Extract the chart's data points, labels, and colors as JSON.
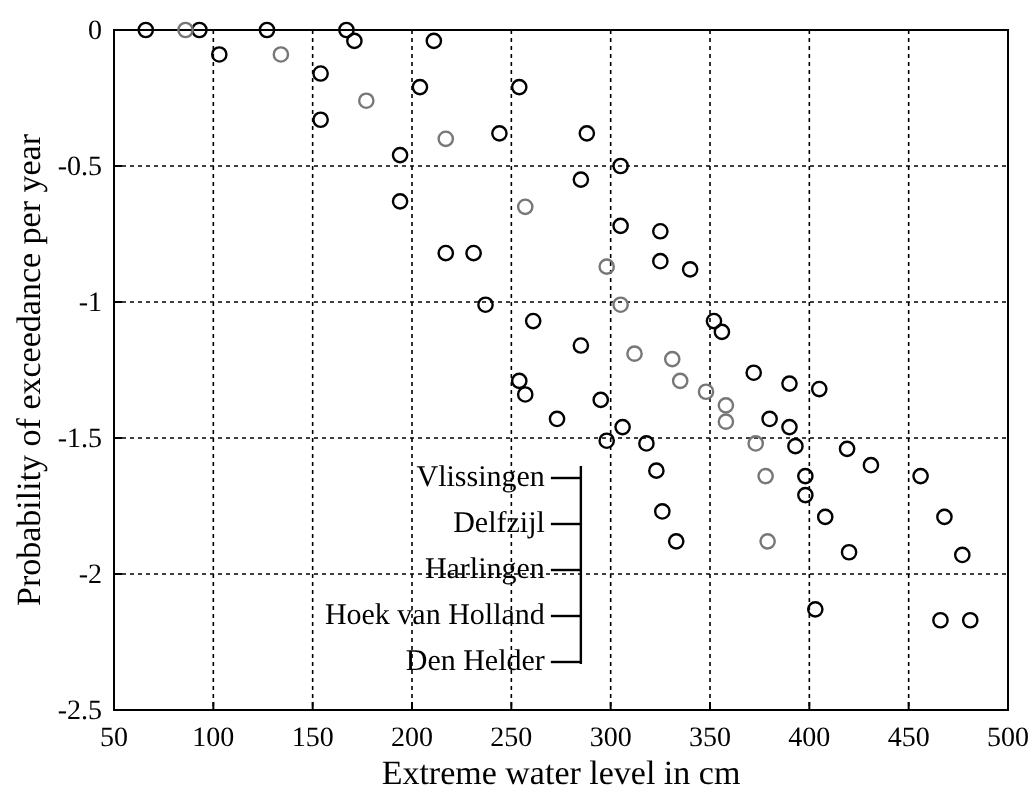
{
  "chart_data": {
    "type": "scatter",
    "xlabel": "Extreme water level in cm",
    "ylabel": "Probability of exceedance per year",
    "xlim": [
      50,
      500
    ],
    "xticks": [
      50,
      100,
      150,
      200,
      250,
      300,
      350,
      400,
      450,
      500
    ],
    "ylim": [
      -2.5,
      0
    ],
    "yticks": [
      -2.5,
      -2,
      -1.5,
      -1,
      -0.5,
      0
    ],
    "grid": true,
    "marker": "circle",
    "series": [
      {
        "color": "#000000",
        "x": [
          66,
          103,
          154,
          194,
          217,
          237,
          254,
          257,
          273
        ],
        "values": [
          0,
          -0.09,
          -0.33,
          -0.63,
          -0.82,
          -1.01,
          -1.29,
          -1.34,
          -1.43
        ]
      },
      {
        "color": "#000000",
        "x": [
          93,
          154,
          194,
          231,
          261,
          285,
          295,
          298,
          306,
          318,
          323,
          326,
          333
        ],
        "values": [
          0,
          -0.16,
          -0.46,
          -0.82,
          -1.07,
          -1.16,
          -1.36,
          -1.51,
          -1.46,
          -1.52,
          -1.62,
          -1.77,
          -1.88
        ]
      },
      {
        "color": "#777777",
        "x": [
          86,
          134,
          177,
          217,
          257,
          298,
          305,
          312,
          331,
          335,
          348,
          358,
          358,
          373,
          378,
          379
        ],
        "values": [
          0,
          -0.09,
          -0.26,
          -0.4,
          -0.65,
          -0.87,
          -1.01,
          -1.19,
          -1.21,
          -1.29,
          -1.33,
          -1.38,
          -1.44,
          -1.52,
          -1.64,
          -1.88
        ]
      },
      {
        "color": "#000000",
        "x": [
          127,
          171,
          204,
          244,
          285,
          305,
          325,
          352,
          390,
          405,
          419,
          431,
          456,
          468,
          477,
          466,
          481
        ],
        "values": [
          0,
          -0.04,
          -0.21,
          -0.38,
          -0.55,
          -0.72,
          -0.85,
          -1.07,
          -1.3,
          -1.32,
          -1.54,
          -1.6,
          -1.64,
          -1.79,
          -1.93,
          -2.17,
          -2.17
        ]
      },
      {
        "color": "#000000",
        "x": [
          167,
          211,
          254,
          288,
          305,
          325,
          340,
          356,
          372,
          380,
          390,
          393,
          398,
          398,
          408,
          420,
          403
        ],
        "values": [
          0,
          -0.04,
          -0.21,
          -0.38,
          -0.5,
          -0.74,
          -0.88,
          -1.11,
          -1.26,
          -1.43,
          -1.46,
          -1.53,
          -1.64,
          -1.71,
          -1.79,
          -1.92,
          -2.13
        ]
      }
    ],
    "annotations": [
      "Vlissingen",
      "Delfzijl",
      "Harlingen",
      "Hoek van Holland",
      "Den Helder"
    ]
  }
}
